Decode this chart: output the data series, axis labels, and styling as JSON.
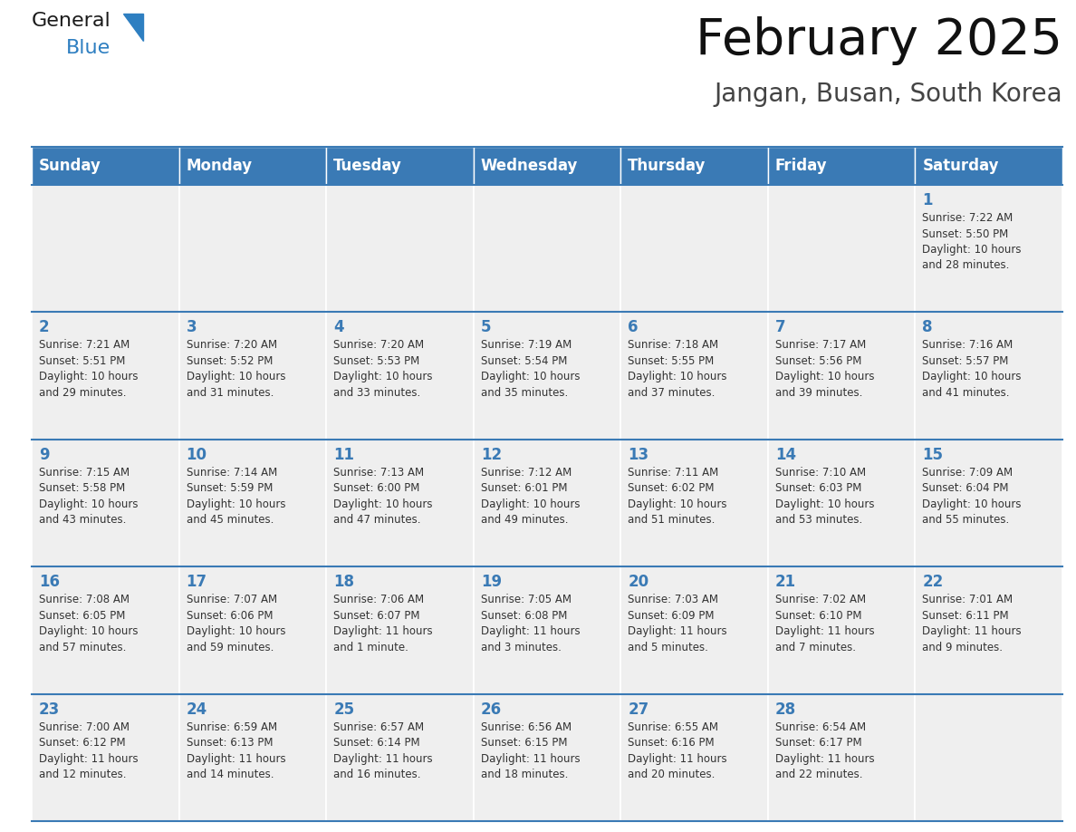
{
  "title": "February 2025",
  "subtitle": "Jangan, Busan, South Korea",
  "header_bg": "#3a7ab5",
  "header_text_color": "#ffffff",
  "cell_bg": "#efefef",
  "cell_text_color": "#333333",
  "day_number_color": "#3a7ab5",
  "border_color_h": "#3a7ab5",
  "border_color_v": "#ffffff",
  "days_of_week": [
    "Sunday",
    "Monday",
    "Tuesday",
    "Wednesday",
    "Thursday",
    "Friday",
    "Saturday"
  ],
  "weeks": [
    [
      {
        "day": null,
        "info": null
      },
      {
        "day": null,
        "info": null
      },
      {
        "day": null,
        "info": null
      },
      {
        "day": null,
        "info": null
      },
      {
        "day": null,
        "info": null
      },
      {
        "day": null,
        "info": null
      },
      {
        "day": 1,
        "info": "Sunrise: 7:22 AM\nSunset: 5:50 PM\nDaylight: 10 hours\nand 28 minutes."
      }
    ],
    [
      {
        "day": 2,
        "info": "Sunrise: 7:21 AM\nSunset: 5:51 PM\nDaylight: 10 hours\nand 29 minutes."
      },
      {
        "day": 3,
        "info": "Sunrise: 7:20 AM\nSunset: 5:52 PM\nDaylight: 10 hours\nand 31 minutes."
      },
      {
        "day": 4,
        "info": "Sunrise: 7:20 AM\nSunset: 5:53 PM\nDaylight: 10 hours\nand 33 minutes."
      },
      {
        "day": 5,
        "info": "Sunrise: 7:19 AM\nSunset: 5:54 PM\nDaylight: 10 hours\nand 35 minutes."
      },
      {
        "day": 6,
        "info": "Sunrise: 7:18 AM\nSunset: 5:55 PM\nDaylight: 10 hours\nand 37 minutes."
      },
      {
        "day": 7,
        "info": "Sunrise: 7:17 AM\nSunset: 5:56 PM\nDaylight: 10 hours\nand 39 minutes."
      },
      {
        "day": 8,
        "info": "Sunrise: 7:16 AM\nSunset: 5:57 PM\nDaylight: 10 hours\nand 41 minutes."
      }
    ],
    [
      {
        "day": 9,
        "info": "Sunrise: 7:15 AM\nSunset: 5:58 PM\nDaylight: 10 hours\nand 43 minutes."
      },
      {
        "day": 10,
        "info": "Sunrise: 7:14 AM\nSunset: 5:59 PM\nDaylight: 10 hours\nand 45 minutes."
      },
      {
        "day": 11,
        "info": "Sunrise: 7:13 AM\nSunset: 6:00 PM\nDaylight: 10 hours\nand 47 minutes."
      },
      {
        "day": 12,
        "info": "Sunrise: 7:12 AM\nSunset: 6:01 PM\nDaylight: 10 hours\nand 49 minutes."
      },
      {
        "day": 13,
        "info": "Sunrise: 7:11 AM\nSunset: 6:02 PM\nDaylight: 10 hours\nand 51 minutes."
      },
      {
        "day": 14,
        "info": "Sunrise: 7:10 AM\nSunset: 6:03 PM\nDaylight: 10 hours\nand 53 minutes."
      },
      {
        "day": 15,
        "info": "Sunrise: 7:09 AM\nSunset: 6:04 PM\nDaylight: 10 hours\nand 55 minutes."
      }
    ],
    [
      {
        "day": 16,
        "info": "Sunrise: 7:08 AM\nSunset: 6:05 PM\nDaylight: 10 hours\nand 57 minutes."
      },
      {
        "day": 17,
        "info": "Sunrise: 7:07 AM\nSunset: 6:06 PM\nDaylight: 10 hours\nand 59 minutes."
      },
      {
        "day": 18,
        "info": "Sunrise: 7:06 AM\nSunset: 6:07 PM\nDaylight: 11 hours\nand 1 minute."
      },
      {
        "day": 19,
        "info": "Sunrise: 7:05 AM\nSunset: 6:08 PM\nDaylight: 11 hours\nand 3 minutes."
      },
      {
        "day": 20,
        "info": "Sunrise: 7:03 AM\nSunset: 6:09 PM\nDaylight: 11 hours\nand 5 minutes."
      },
      {
        "day": 21,
        "info": "Sunrise: 7:02 AM\nSunset: 6:10 PM\nDaylight: 11 hours\nand 7 minutes."
      },
      {
        "day": 22,
        "info": "Sunrise: 7:01 AM\nSunset: 6:11 PM\nDaylight: 11 hours\nand 9 minutes."
      }
    ],
    [
      {
        "day": 23,
        "info": "Sunrise: 7:00 AM\nSunset: 6:12 PM\nDaylight: 11 hours\nand 12 minutes."
      },
      {
        "day": 24,
        "info": "Sunrise: 6:59 AM\nSunset: 6:13 PM\nDaylight: 11 hours\nand 14 minutes."
      },
      {
        "day": 25,
        "info": "Sunrise: 6:57 AM\nSunset: 6:14 PM\nDaylight: 11 hours\nand 16 minutes."
      },
      {
        "day": 26,
        "info": "Sunrise: 6:56 AM\nSunset: 6:15 PM\nDaylight: 11 hours\nand 18 minutes."
      },
      {
        "day": 27,
        "info": "Sunrise: 6:55 AM\nSunset: 6:16 PM\nDaylight: 11 hours\nand 20 minutes."
      },
      {
        "day": 28,
        "info": "Sunrise: 6:54 AM\nSunset: 6:17 PM\nDaylight: 11 hours\nand 22 minutes."
      },
      {
        "day": null,
        "info": null
      }
    ]
  ],
  "logo_text1": "General",
  "logo_text2": "Blue",
  "logo_color1": "#1a1a1a",
  "logo_color2": "#2e7fc1",
  "logo_triangle_color": "#2e7fc1",
  "title_fontsize": 40,
  "subtitle_fontsize": 20,
  "header_fontsize": 12,
  "day_num_fontsize": 12,
  "cell_info_fontsize": 8.5
}
